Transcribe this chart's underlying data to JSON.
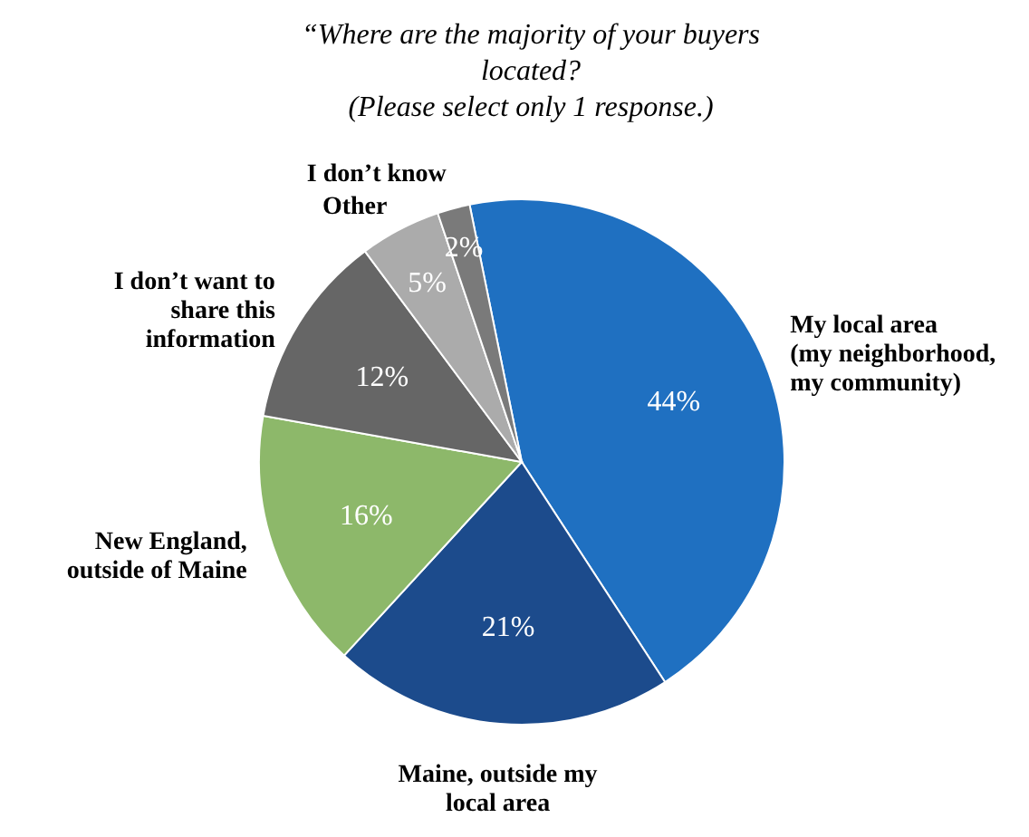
{
  "chart_data": {
    "type": "pie",
    "title": "“Where are the majority of your buyers located? (Please select only 1 response.)",
    "categories": [
      "My local area (my neighborhood, my community)",
      "Maine, outside my local area",
      "New England, outside of Maine",
      "I don’t want to share this information",
      "Other",
      "I don’t know"
    ],
    "values": [
      44,
      21,
      16,
      12,
      5,
      2
    ],
    "value_labels": [
      "44%",
      "21%",
      "16%",
      "12%",
      "5%",
      "2%"
    ],
    "colors": [
      "#1f70c1",
      "#1c4b8c",
      "#8db86a",
      "#666666",
      "#ababab",
      "#7a7a7a"
    ]
  }
}
